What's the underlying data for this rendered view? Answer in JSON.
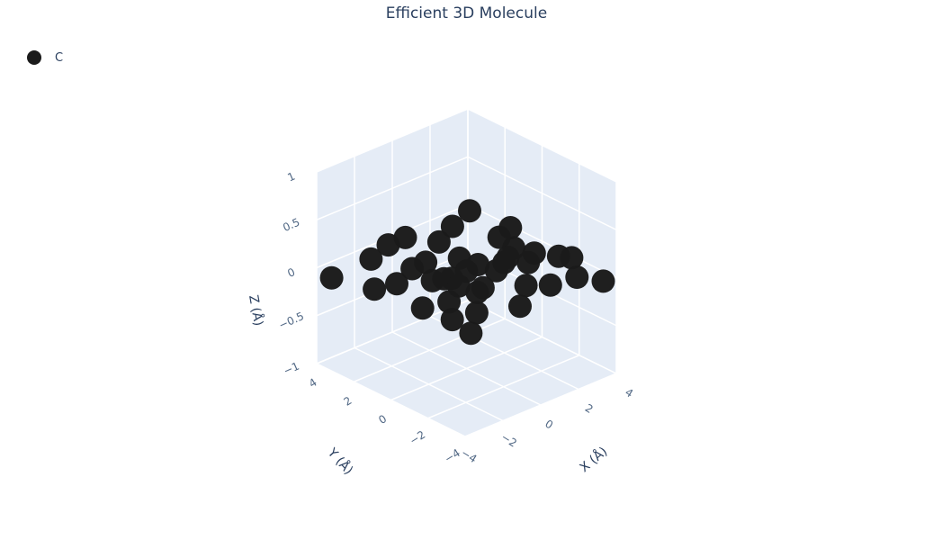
{
  "chart_data": {
    "type": "scatter",
    "title": "Efficient 3D Molecule",
    "legend": {
      "position": "top-left",
      "entries": [
        {
          "name": "C",
          "color": "#1b1b1b"
        }
      ]
    },
    "axes": {
      "x": {
        "label": "X (Å)",
        "range": [
          -4,
          4
        ],
        "ticks": [
          "−4",
          "−2",
          "0",
          "2",
          "4"
        ]
      },
      "y": {
        "label": "Y (Å)",
        "range": [
          -4,
          4
        ],
        "ticks": [
          "−4",
          "−2",
          "0",
          "2",
          "4"
        ]
      },
      "z": {
        "label": "Z (Å)",
        "range": [
          -1,
          1
        ],
        "ticks": [
          "−1",
          "−0.5",
          "0",
          "0.5",
          "1"
        ]
      }
    },
    "grid": true,
    "series": [
      {
        "name": "C",
        "color": "#1b1b1b",
        "points": [
          {
            "x": -3.6,
            "y": 3.6,
            "z": -0.1
          },
          {
            "x": -3.6,
            "y": 1.3,
            "z": 0.0
          },
          {
            "x": -3.6,
            "y": -1.3,
            "z": 0.05
          },
          {
            "x": -3.7,
            "y": -3.0,
            "z": 0.1
          },
          {
            "x": -3.4,
            "y": -3.7,
            "z": 0.0
          },
          {
            "x": -2.5,
            "y": 2.6,
            "z": 0.1
          },
          {
            "x": -1.6,
            "y": 1.3,
            "z": 0.05
          },
          {
            "x": -2.2,
            "y": -1.3,
            "z": 0.0
          },
          {
            "x": -2.6,
            "y": -3.2,
            "z": 0.1
          },
          {
            "x": -1.4,
            "y": -2.0,
            "z": 0.1
          },
          {
            "x": -0.9,
            "y": 3.3,
            "z": 0.05
          },
          {
            "x": -0.2,
            "y": 0.6,
            "z": -0.1
          },
          {
            "x": -0.4,
            "y": -1.3,
            "z": 0.0
          },
          {
            "x": -0.7,
            "y": -3.6,
            "z": 0.05
          },
          {
            "x": 0.4,
            "y": -2.8,
            "z": 0.1
          },
          {
            "x": 0.3,
            "y": 3.6,
            "z": 0.0
          },
          {
            "x": 1.2,
            "y": 1.6,
            "z": -0.1
          },
          {
            "x": 1.1,
            "y": -0.9,
            "z": 0.1
          },
          {
            "x": 1.4,
            "y": -3.1,
            "z": 0.05
          },
          {
            "x": 1.8,
            "y": -1.5,
            "z": 0.1
          },
          {
            "x": 2.3,
            "y": 3.1,
            "z": 0.0
          },
          {
            "x": 3.0,
            "y": 1.3,
            "z": 0.0
          },
          {
            "x": 2.8,
            "y": -0.8,
            "z": 0.05
          },
          {
            "x": 2.9,
            "y": -3.0,
            "z": 0.0
          },
          {
            "x": 3.6,
            "y": -2.0,
            "z": 0.05
          },
          {
            "x": 3.7,
            "y": 3.6,
            "z": 0.0
          },
          {
            "x": 3.6,
            "y": 1.3,
            "z": 0.05
          },
          {
            "x": 3.6,
            "y": -1.3,
            "z": 0.0
          },
          {
            "x": 3.7,
            "y": -3.6,
            "z": -0.05
          },
          {
            "x": -3.2,
            "y": 0.5,
            "z": 0.1
          },
          {
            "x": -2.0,
            "y": -0.2,
            "z": 0.1
          },
          {
            "x": -1.0,
            "y": 0.2,
            "z": 0.0
          },
          {
            "x": -0.2,
            "y": -0.2,
            "z": 0.05
          },
          {
            "x": 0.8,
            "y": 0.2,
            "z": 0.0
          },
          {
            "x": 1.8,
            "y": -0.4,
            "z": 0.05
          },
          {
            "x": 2.8,
            "y": 0.3,
            "z": 0.0
          },
          {
            "x": 0.0,
            "y": 2.2,
            "z": -0.1
          },
          {
            "x": -1.0,
            "y": -0.6,
            "z": 0.0
          },
          {
            "x": 1.0,
            "y": 2.5,
            "z": 0.0
          },
          {
            "x": 0.7,
            "y": -0.9,
            "z": 0.05
          }
        ]
      }
    ]
  }
}
